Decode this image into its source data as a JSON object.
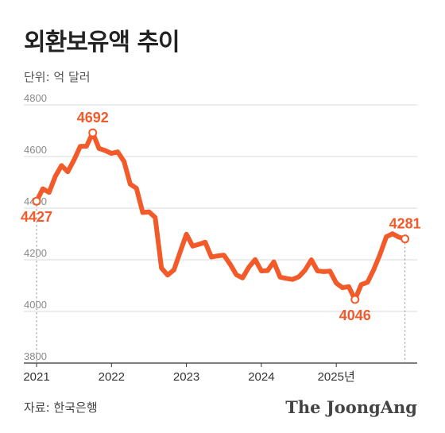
{
  "title": "외환보유액 추이",
  "unit": "단위: 억 달러",
  "source": "자료: 한국은행",
  "brand": "The JoongAng",
  "colors": {
    "line": "#F25A2A",
    "grid": "#d9d9d9",
    "axis_text": "#8a8a8a",
    "label": "#F25A2A",
    "text": "#222222"
  },
  "chart_data": {
    "type": "line",
    "title": "외환보유액 추이",
    "ylabel": "단위: 억 달러",
    "ylim": [
      3800,
      4800
    ],
    "yticks": [
      "4800",
      "4600",
      "4400",
      "4200",
      "4000",
      "3800"
    ],
    "xticks": [
      {
        "label": "2021",
        "x": 2021.0
      },
      {
        "label": "2022",
        "x": 2022.0
      },
      {
        "label": "2023",
        "x": 2023.0
      },
      {
        "label": "2024",
        "x": 2024.0
      },
      {
        "label": "2025년",
        "x": 2025.0
      }
    ],
    "xlim": [
      2020.83,
      2026.08
    ],
    "grid": true,
    "series": [
      {
        "x": [
          2021.0,
          2021.083,
          2021.167,
          2021.25,
          2021.333,
          2021.417,
          2021.5,
          2021.583,
          2021.667,
          2021.75,
          2021.833,
          2021.917,
          2022.0,
          2022.083,
          2022.167,
          2022.25,
          2022.333,
          2022.417,
          2022.5,
          2022.583,
          2022.667,
          2022.75,
          2022.833,
          2022.917,
          2023.0,
          2023.083,
          2023.167,
          2023.25,
          2023.333,
          2023.417,
          2023.5,
          2023.583,
          2023.667,
          2023.75,
          2023.833,
          2023.917,
          2024.0,
          2024.083,
          2024.167,
          2024.25,
          2024.333,
          2024.417,
          2024.5,
          2024.583,
          2024.667,
          2024.75,
          2024.833,
          2024.917,
          2025.0,
          2025.083,
          2025.167,
          2025.25,
          2025.333,
          2025.417,
          2025.5,
          2025.583,
          2025.667,
          2025.75,
          2025.833,
          2025.917
        ],
        "y": [
          4427,
          4475,
          4461,
          4523,
          4565,
          4541,
          4587,
          4639,
          4640,
          4692,
          4631,
          4623,
          4612,
          4618,
          4581,
          4493,
          4477,
          4383,
          4386,
          4364,
          4168,
          4141,
          4161,
          4231,
          4299,
          4253,
          4260,
          4268,
          4211,
          4215,
          4218,
          4183,
          4142,
          4130,
          4171,
          4201,
          4157,
          4158,
          4192,
          4133,
          4128,
          4124,
          4134,
          4160,
          4200,
          4157,
          4154,
          4156,
          4110,
          4092,
          4096,
          4046,
          4104,
          4113,
          4162,
          4220,
          4289,
          4301,
          4288,
          4281
        ]
      }
    ],
    "annotations": [
      {
        "label": "4427",
        "x": 2021.0,
        "y": 4427,
        "position": "below"
      },
      {
        "label": "4692",
        "x": 2021.75,
        "y": 4692,
        "position": "above"
      },
      {
        "label": "4046",
        "x": 2025.25,
        "y": 4046,
        "position": "below"
      },
      {
        "label": "4281",
        "x": 2025.917,
        "y": 4281,
        "position": "above"
      }
    ]
  }
}
